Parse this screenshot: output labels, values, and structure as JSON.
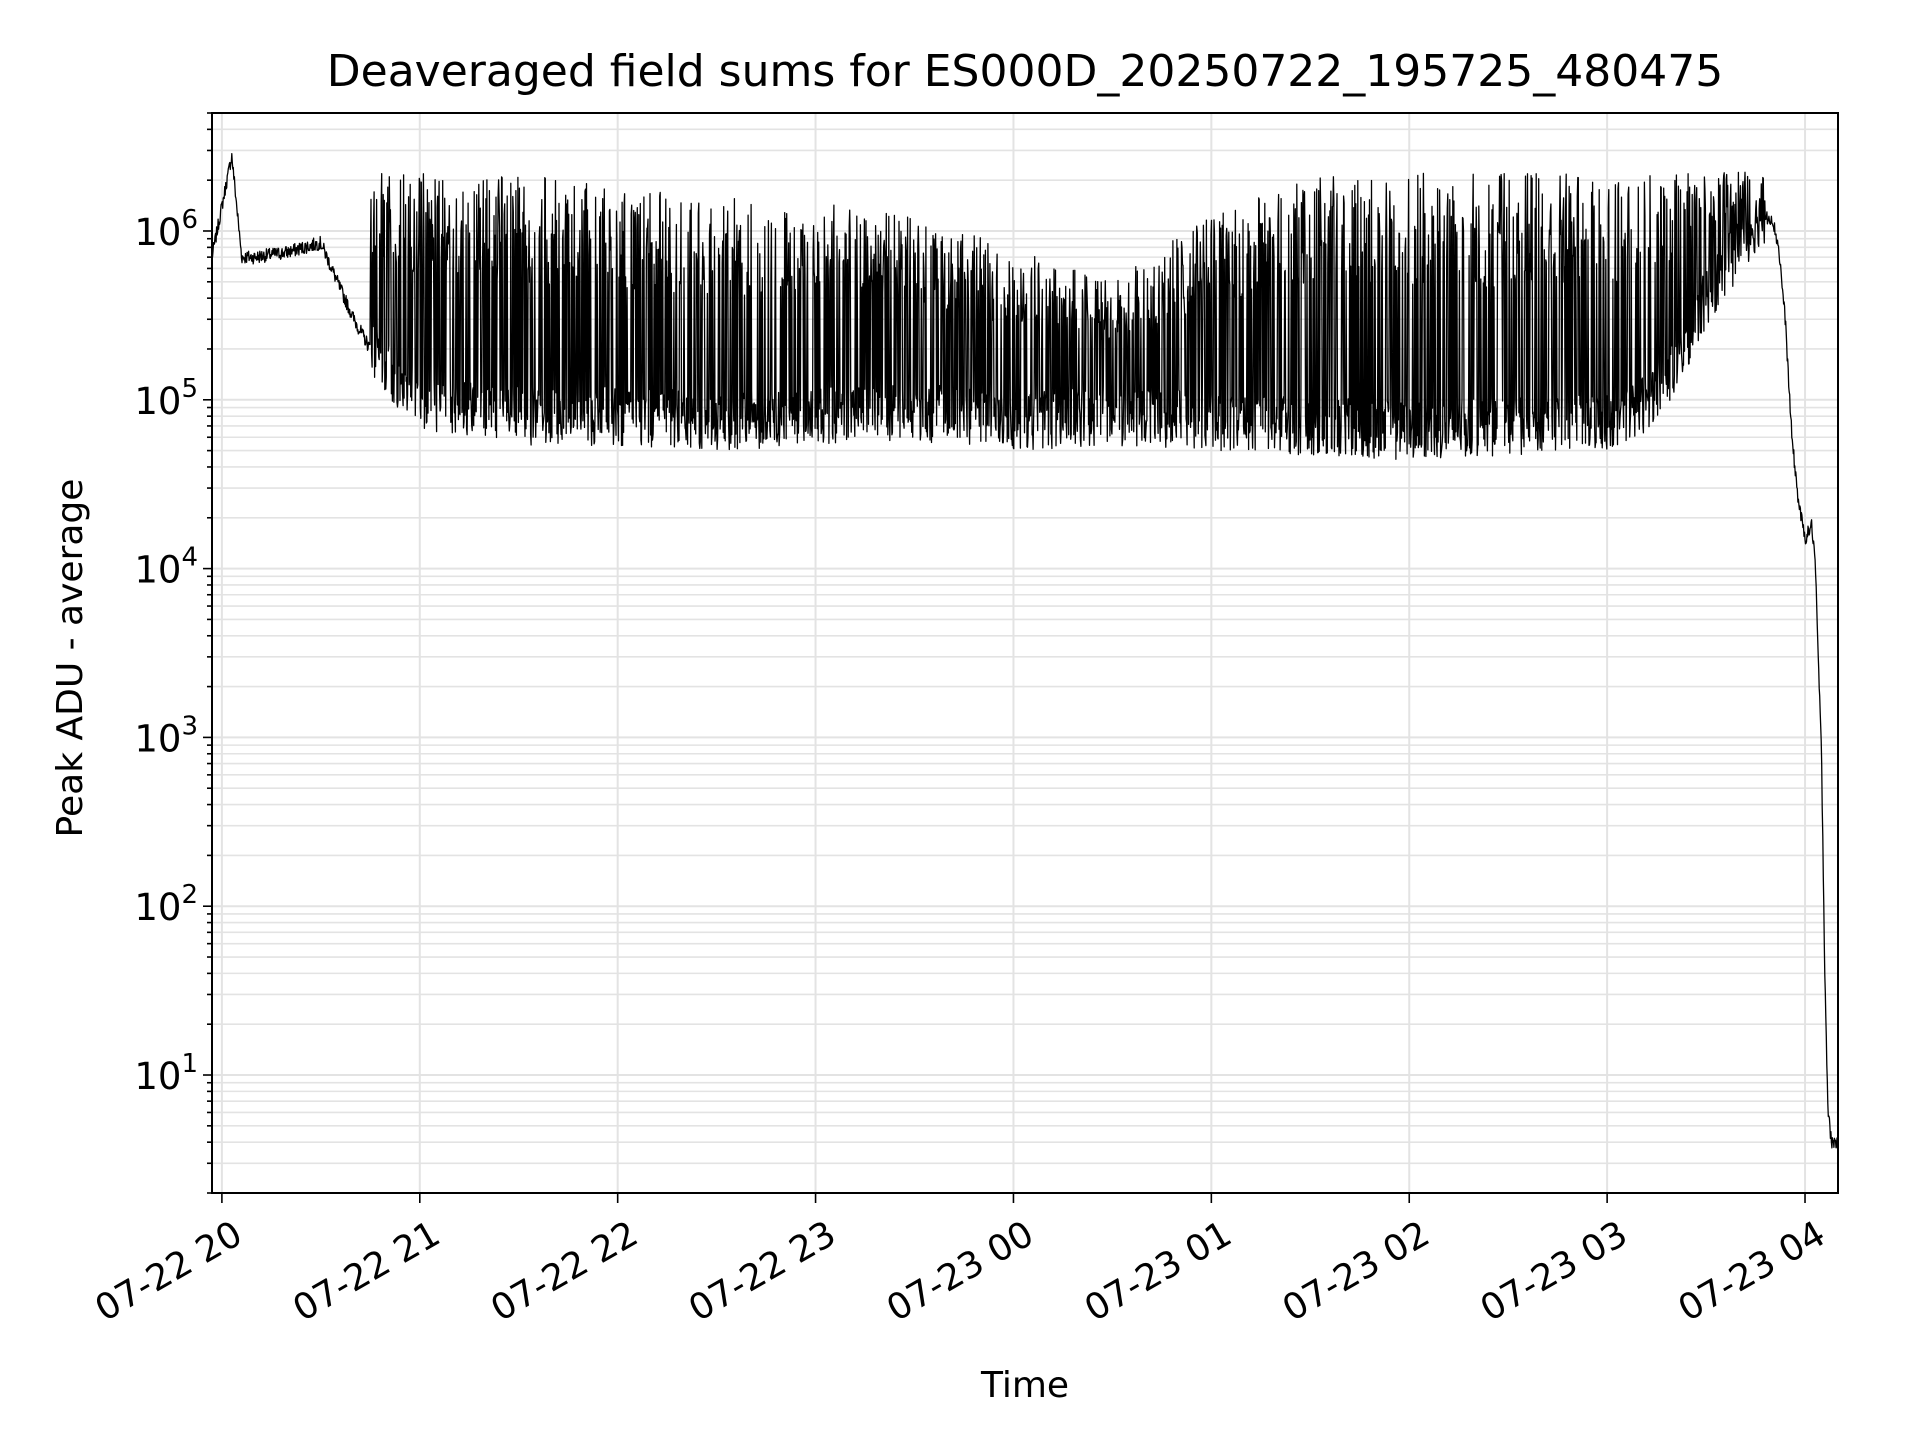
{
  "chart_data": {
    "type": "line",
    "title": "Deaveraged field sums for ES000D_20250722_195725_480475",
    "xlabel": "Time",
    "ylabel": "Peak ADU - average",
    "yscale": "log",
    "ylim": [
      2,
      5000000
    ],
    "xlim": [
      "2025-07-22 19:57",
      "2025-07-23 04:10"
    ],
    "grid": true,
    "line_color": "#000000",
    "x_ticks": [
      "07-22 20",
      "07-22 21",
      "07-22 22",
      "07-22 23",
      "07-23 00",
      "07-23 01",
      "07-23 02",
      "07-23 03",
      "07-23 04"
    ],
    "y_ticks": [
      {
        "base": "10",
        "exp": "1"
      },
      {
        "base": "10",
        "exp": "2"
      },
      {
        "base": "10",
        "exp": "3"
      },
      {
        "base": "10",
        "exp": "4"
      },
      {
        "base": "10",
        "exp": "5"
      },
      {
        "base": "10",
        "exp": "6"
      }
    ],
    "series": [
      {
        "x": [
          "2025-07-22 19:57",
          "2025-07-22 20:03",
          "2025-07-22 20:06",
          "2025-07-22 20:10",
          "2025-07-22 20:20",
          "2025-07-22 20:25",
          "2025-07-22 20:30",
          "2025-07-22 20:35",
          "2025-07-22 20:40",
          "2025-07-22 20:45",
          "2025-07-22 20:50",
          "2025-07-22 21:00",
          "2025-07-22 21:30",
          "2025-07-22 22:00",
          "2025-07-22 22:30",
          "2025-07-22 23:00",
          "2025-07-22 23:30",
          "2025-07-23 00:00",
          "2025-07-23 00:30",
          "2025-07-23 01:00",
          "2025-07-23 01:30",
          "2025-07-23 02:00",
          "2025-07-23 02:30",
          "2025-07-23 03:00",
          "2025-07-23 03:10",
          "2025-07-23 03:20",
          "2025-07-23 03:30",
          "2025-07-23 03:40",
          "2025-07-23 03:46",
          "2025-07-23 03:50",
          "2025-07-23 03:52",
          "2025-07-23 03:54",
          "2025-07-23 03:56",
          "2025-07-23 03:58",
          "2025-07-23 04:00",
          "2025-07-23 04:02",
          "2025-07-23 04:03",
          "2025-07-23 04:04",
          "2025-07-23 04:05",
          "2025-07-23 04:06",
          "2025-07-23 04:07",
          "2025-07-23 04:08",
          "2025-07-23 04:10"
        ],
        "y": [
          700000,
          2800000,
          700000,
          700000,
          750000,
          800000,
          850000,
          500000,
          300000,
          200000,
          150000,
          100000,
          80000,
          80000,
          75000,
          80000,
          85000,
          75000,
          80000,
          75000,
          70000,
          65000,
          70000,
          75000,
          90000,
          150000,
          400000,
          800000,
          1200000,
          1200000,
          800000,
          300000,
          60000,
          25000,
          15000,
          18000,
          12000,
          3000,
          800,
          40,
          6,
          4,
          4
        ],
        "spikes_upper_envelope": {
          "x": [
            "2025-07-22 20:45",
            "2025-07-22 21:00",
            "2025-07-22 21:30",
            "2025-07-22 22:00",
            "2025-07-22 22:30",
            "2025-07-22 23:00",
            "2025-07-22 23:30",
            "2025-07-23 00:00",
            "2025-07-23 00:30",
            "2025-07-23 01:00",
            "2025-07-23 01:30",
            "2025-07-23 02:00",
            "2025-07-23 02:30",
            "2025-07-23 03:00",
            "2025-07-23 03:30",
            "2025-07-23 03:48"
          ],
          "y": [
            2200000,
            2200000,
            2200000,
            1800000,
            1600000,
            1500000,
            1200000,
            800000,
            500000,
            1300000,
            2200000,
            2200000,
            2200000,
            2200000,
            2200000,
            2400000
          ]
        }
      }
    ]
  }
}
